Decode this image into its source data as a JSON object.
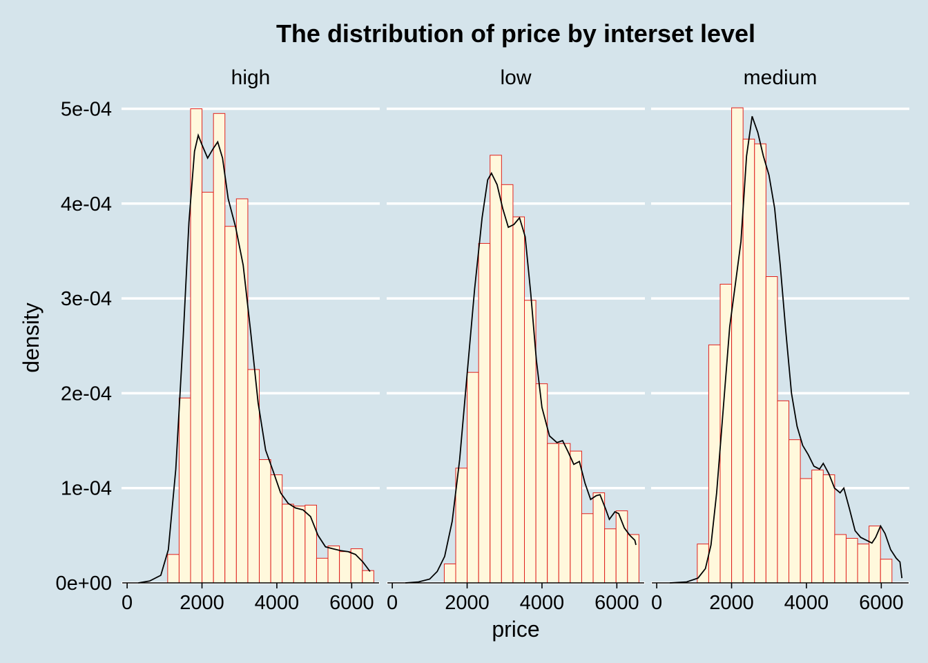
{
  "chart_data": {
    "type": "histogram",
    "title": "The distribution of price by interset level",
    "xlabel": "price",
    "ylabel": "density",
    "x_ticks": [
      0,
      2000,
      4000,
      6000
    ],
    "y_ticks": [
      0,
      0.0001,
      0.0002,
      0.0003,
      0.0004,
      0.0005
    ],
    "y_tick_labels": [
      "0e+00",
      "1e-04",
      "2e-04",
      "3e-04",
      "4e-04",
      "5e-04"
    ],
    "xlim": [
      -150,
      6750
    ],
    "ylim": [
      0,
      0.00052
    ],
    "grid": true,
    "bin_width": 306,
    "bin_centers": [
      1236,
      1542,
      1848,
      2154,
      2460,
      2766,
      3072,
      3378,
      3684,
      3990,
      4296,
      4602,
      4908,
      5214,
      5520,
      5826,
      6132,
      6438
    ],
    "colors": {
      "background": "#d5e4eb",
      "bar_fill": "#fff8dc",
      "bar_outline": "#e0201c",
      "density_line": "#000000",
      "grid": "#ffffff"
    },
    "panels": [
      {
        "name": "high",
        "densities": [
          3e-05,
          0.000195,
          0.0005,
          0.000412,
          0.000495,
          0.000376,
          0.000405,
          0.000225,
          0.00013,
          0.000114,
          8.3e-05,
          8.1e-05,
          8.2e-05,
          2.6e-05,
          3.9e-05,
          3.3e-05,
          3.6e-05,
          1.3e-05
        ],
        "density_curve": [
          [
            300,
            0
          ],
          [
            600,
            2e-06
          ],
          [
            900,
            8e-06
          ],
          [
            1100,
            3.5e-05
          ],
          [
            1300,
            0.00012
          ],
          [
            1500,
            0.00026
          ],
          [
            1650,
            0.00038
          ],
          [
            1800,
            0.000455
          ],
          [
            1900,
            0.000472
          ],
          [
            2000,
            0.000462
          ],
          [
            2150,
            0.000448
          ],
          [
            2300,
            0.000458
          ],
          [
            2420,
            0.000465
          ],
          [
            2550,
            0.000448
          ],
          [
            2700,
            0.000405
          ],
          [
            2900,
            0.000375
          ],
          [
            3100,
            0.000335
          ],
          [
            3300,
            0.000265
          ],
          [
            3500,
            0.00019
          ],
          [
            3700,
            0.00014
          ],
          [
            3900,
            0.000118
          ],
          [
            4100,
            9.5e-05
          ],
          [
            4300,
            8.4e-05
          ],
          [
            4500,
            7.9e-05
          ],
          [
            4700,
            7.7e-05
          ],
          [
            4900,
            7e-05
          ],
          [
            5100,
            5e-05
          ],
          [
            5300,
            3.8e-05
          ],
          [
            5500,
            3.6e-05
          ],
          [
            5700,
            3.4e-05
          ],
          [
            5900,
            3.3e-05
          ],
          [
            6100,
            3e-05
          ],
          [
            6300,
            2.2e-05
          ],
          [
            6490,
            1.2e-05
          ]
        ]
      },
      {
        "name": "low",
        "densities": [
          0,
          2e-05,
          0.000121,
          0.000222,
          0.000358,
          0.000451,
          0.00042,
          0.000386,
          0.000298,
          0.00021,
          0.000147,
          0.000147,
          0.000139,
          7.3e-05,
          9.5e-05,
          5.7e-05,
          7.6e-05,
          5.1e-05
        ],
        "density_curve": [
          [
            350,
            0
          ],
          [
            700,
            1e-06
          ],
          [
            1000,
            4e-06
          ],
          [
            1200,
            1.2e-05
          ],
          [
            1400,
            2.8e-05
          ],
          [
            1600,
            6.5e-05
          ],
          [
            1800,
            0.00013
          ],
          [
            2000,
            0.00022
          ],
          [
            2200,
            0.00031
          ],
          [
            2400,
            0.000385
          ],
          [
            2550,
            0.000425
          ],
          [
            2650,
            0.000432
          ],
          [
            2800,
            0.00042
          ],
          [
            2950,
            0.000395
          ],
          [
            3100,
            0.000375
          ],
          [
            3250,
            0.000378
          ],
          [
            3400,
            0.000385
          ],
          [
            3550,
            0.000365
          ],
          [
            3700,
            0.000305
          ],
          [
            3850,
            0.000235
          ],
          [
            4000,
            0.000185
          ],
          [
            4200,
            0.000155
          ],
          [
            4400,
            0.000148
          ],
          [
            4550,
            0.00015
          ],
          [
            4700,
            0.000138
          ],
          [
            4850,
            0.000125
          ],
          [
            5000,
            0.000128
          ],
          [
            5150,
            0.000105
          ],
          [
            5300,
            8.8e-05
          ],
          [
            5450,
            9.2e-05
          ],
          [
            5550,
            9.3e-05
          ],
          [
            5700,
            7.8e-05
          ],
          [
            5800,
            6.7e-05
          ],
          [
            5950,
            7.5e-05
          ],
          [
            6050,
            7.3e-05
          ],
          [
            6200,
            5.8e-05
          ],
          [
            6350,
            5e-05
          ],
          [
            6480,
            4.5e-05
          ],
          [
            6510,
            4e-05
          ]
        ]
      },
      {
        "name": "medium",
        "densities": [
          4.1e-05,
          0.000251,
          0.000315,
          0.000501,
          0.000468,
          0.000463,
          0.000323,
          0.000192,
          0.000151,
          0.00011,
          0.000119,
          0.000114,
          5.1e-05,
          4.7e-05,
          4.1e-05,
          6e-05,
          2.5e-05,
          0
        ],
        "density_curve": [
          [
            350,
            0
          ],
          [
            800,
            1e-06
          ],
          [
            1100,
            5e-06
          ],
          [
            1300,
            1.5e-05
          ],
          [
            1450,
            4e-05
          ],
          [
            1600,
            9.5e-05
          ],
          [
            1800,
            0.000195
          ],
          [
            1950,
            0.00027
          ],
          [
            2100,
            0.000315
          ],
          [
            2250,
            0.00036
          ],
          [
            2400,
            0.00045
          ],
          [
            2550,
            0.000492
          ],
          [
            2700,
            0.000475
          ],
          [
            2850,
            0.00045
          ],
          [
            3000,
            0.00043
          ],
          [
            3150,
            0.000395
          ],
          [
            3300,
            0.000335
          ],
          [
            3450,
            0.000265
          ],
          [
            3600,
            0.0002
          ],
          [
            3750,
            0.000165
          ],
          [
            3900,
            0.000145
          ],
          [
            4050,
            0.000135
          ],
          [
            4200,
            0.000123
          ],
          [
            4350,
            0.00012
          ],
          [
            4450,
            0.000126
          ],
          [
            4600,
            0.000115
          ],
          [
            4750,
            0.0001
          ],
          [
            4900,
            9.5e-05
          ],
          [
            5000,
            0.0001
          ],
          [
            5150,
            7.8e-05
          ],
          [
            5300,
            5.5e-05
          ],
          [
            5450,
            4.8e-05
          ],
          [
            5600,
            4.5e-05
          ],
          [
            5750,
            4.2e-05
          ],
          [
            5850,
            4.8e-05
          ],
          [
            5980,
            6e-05
          ],
          [
            6100,
            5.2e-05
          ],
          [
            6250,
            3.5e-05
          ],
          [
            6400,
            2.6e-05
          ],
          [
            6500,
            2.2e-05
          ],
          [
            6550,
            5e-06
          ]
        ]
      }
    ]
  }
}
